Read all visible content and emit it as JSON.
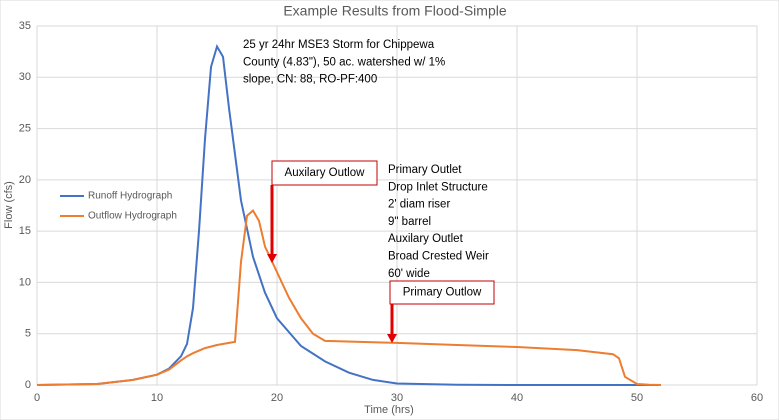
{
  "chart_data": {
    "type": "line",
    "title": "Example Results from Flood-Simple",
    "xlabel": "Time (hrs)",
    "ylabel": "Flow (cfs)",
    "xlim": [
      0,
      60
    ],
    "xticks": [
      0,
      10,
      20,
      30,
      40,
      50,
      60
    ],
    "ylim": [
      0,
      35
    ],
    "yticks": [
      0,
      5,
      10,
      15,
      20,
      25,
      30,
      35
    ],
    "grid": true,
    "legend": "left",
    "series": [
      {
        "name": "Runoff Hydrograph",
        "color": "#4472c4",
        "x": [
          0,
          5,
          8,
          10,
          11,
          12,
          12.5,
          13,
          13.5,
          14,
          14.5,
          15,
          15.5,
          16,
          17,
          18,
          19,
          20,
          22,
          24,
          26,
          28,
          30,
          35,
          40,
          52
        ],
        "values": [
          0,
          0.1,
          0.5,
          1.0,
          1.6,
          2.8,
          4,
          7.5,
          15,
          24,
          31,
          33,
          32,
          27,
          18,
          12.5,
          9,
          6.5,
          3.8,
          2.3,
          1.2,
          0.5,
          0.15,
          0.02,
          0,
          0
        ]
      },
      {
        "name": "Outflow Hydrograph",
        "color": "#ed7d31",
        "x": [
          0,
          5,
          8,
          10,
          11,
          12,
          12.5,
          13,
          14,
          15,
          16,
          16.5,
          17,
          17.5,
          18,
          18.5,
          19,
          20,
          21,
          22,
          23,
          24,
          30,
          35,
          40,
          45,
          48,
          48.5,
          49,
          50,
          51,
          52
        ],
        "values": [
          0,
          0.1,
          0.5,
          1.0,
          1.5,
          2.4,
          2.8,
          3.1,
          3.6,
          3.9,
          4.1,
          4.2,
          12,
          16.5,
          17,
          16,
          13.5,
          11,
          8.5,
          6.5,
          5,
          4.3,
          4.1,
          3.9,
          3.7,
          3.4,
          3.0,
          2.6,
          0.8,
          0.1,
          0.02,
          0
        ]
      }
    ],
    "annotations": [
      {
        "lines": [
          "25 yr 24hr MSE3 Storm for Chippewa",
          "County (4.83\"), 50 ac. watershed w/ 1%",
          "slope, CN: 88, RO-PF:400"
        ]
      },
      {
        "lines": [
          "Primary Outlet",
          "Drop Inlet Structure",
          "2' diam riser",
          "9\" barrel",
          "Auxilary Outlet",
          "Broad Crested Weir",
          "60' wide"
        ]
      },
      {
        "text": "Auxilary Outlow"
      },
      {
        "text": "Primary Outlow"
      }
    ]
  }
}
